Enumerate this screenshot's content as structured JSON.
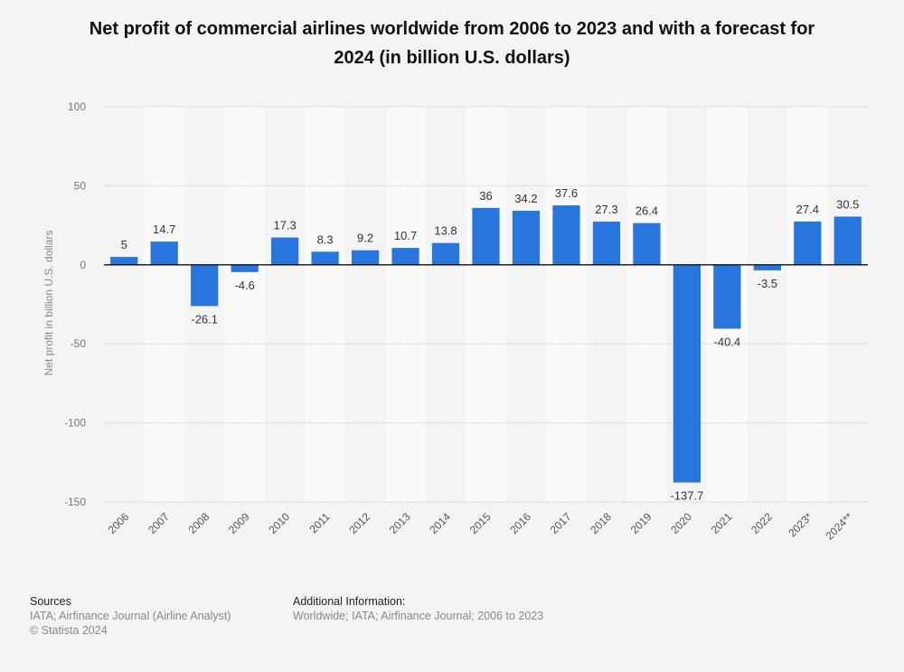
{
  "chart_data": {
    "type": "bar",
    "title_lines": [
      "Net profit of commercial airlines worldwide from 2006 to 2023 and with a forecast for",
      "2024 (in billion U.S. dollars)"
    ],
    "xlabel": "",
    "ylabel": "Net profit in billion U.S. dollars",
    "ylim": [
      -150,
      100
    ],
    "yticks": [
      100,
      50,
      0,
      -50,
      -100,
      -150
    ],
    "grid": true,
    "categories": [
      "2006",
      "2007",
      "2008",
      "2009",
      "2010",
      "2011",
      "2012",
      "2013",
      "2014",
      "2015",
      "2016",
      "2017",
      "2018",
      "2019",
      "2020",
      "2021",
      "2022",
      "2023*",
      "2024**"
    ],
    "values": [
      5,
      14.7,
      -26.1,
      -4.6,
      17.3,
      8.3,
      9.2,
      10.7,
      13.8,
      36,
      34.2,
      37.6,
      27.3,
      26.4,
      -137.7,
      -40.4,
      -3.5,
      27.4,
      30.5
    ],
    "labels": [
      "5",
      "14.7",
      "-26.1",
      "-4.6",
      "17.3",
      "8.3",
      "9.2",
      "10.7",
      "13.8",
      "36",
      "34.2",
      "37.6",
      "27.3",
      "26.4",
      "-137.7",
      "-40.4",
      "-3.5",
      "27.4",
      "30.5"
    ],
    "bar_color": "#2876dd"
  },
  "footer": {
    "sources_heading": "Sources",
    "sources_text": "IATA; Airfinance Journal (Airline Analyst)",
    "copyright": "© Statista 2024",
    "additional_heading": "Additional Information:",
    "additional_text": "Worldwide; IATA; Airfinance Journal; 2006 to 2023"
  }
}
